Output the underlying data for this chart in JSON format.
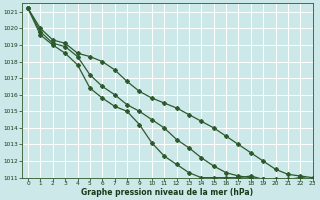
{
  "bg_color": "#cce8e8",
  "grid_color": "#aad4d4",
  "line_color": "#2d5a2d",
  "text_color": "#1a3a1a",
  "xlabel": "Graphe pression niveau de la mer (hPa)",
  "xlim": [
    -0.5,
    23
  ],
  "ylim": [
    1011,
    1021.5
  ],
  "yticks": [
    1011,
    1012,
    1013,
    1014,
    1015,
    1016,
    1017,
    1018,
    1019,
    1020,
    1021
  ],
  "xticks": [
    0,
    1,
    2,
    3,
    4,
    5,
    6,
    7,
    8,
    9,
    10,
    11,
    12,
    13,
    14,
    15,
    16,
    17,
    18,
    19,
    20,
    21,
    22,
    23
  ],
  "series1_x": [
    0,
    1,
    2,
    3,
    4,
    5,
    6,
    7,
    8,
    9,
    10,
    11,
    12,
    13,
    14,
    15,
    16,
    17,
    18,
    19,
    20,
    21,
    22,
    23
  ],
  "series1_y": [
    1021.2,
    1020.0,
    1019.3,
    1019.1,
    1018.5,
    1018.3,
    1018.0,
    1017.5,
    1016.8,
    1016.2,
    1015.8,
    1015.5,
    1015.2,
    1014.8,
    1014.4,
    1014.0,
    1013.5,
    1013.0,
    1012.5,
    1012.0,
    1011.5,
    1011.2,
    1011.1,
    1011.0
  ],
  "series2_x": [
    0,
    1,
    2,
    3,
    4,
    5,
    6,
    7,
    8,
    9,
    10,
    11,
    12,
    13,
    14,
    15,
    16,
    17,
    18,
    19,
    20,
    21,
    22,
    23
  ],
  "series2_y": [
    1021.2,
    1019.8,
    1019.1,
    1018.9,
    1018.3,
    1017.2,
    1016.5,
    1016.0,
    1015.4,
    1015.0,
    1014.5,
    1014.0,
    1013.3,
    1012.8,
    1012.2,
    1011.7,
    1011.3,
    1011.1,
    1011.0,
    1010.9,
    1010.9,
    1010.9,
    1011.0,
    1010.9
  ],
  "series3_x": [
    0,
    1,
    2,
    3,
    4,
    5,
    6,
    7,
    8,
    9,
    10,
    11,
    12,
    13,
    14,
    15,
    16,
    17,
    18,
    19,
    20,
    21,
    22,
    23
  ],
  "series3_y": [
    1021.2,
    1019.6,
    1019.0,
    1018.5,
    1017.8,
    1016.4,
    1015.8,
    1015.3,
    1015.0,
    1014.2,
    1013.1,
    1012.3,
    1011.8,
    1011.3,
    1011.0,
    1011.0,
    1011.0,
    1011.0,
    1011.1,
    1010.9,
    1010.8,
    1010.8,
    1011.0,
    1010.9
  ]
}
